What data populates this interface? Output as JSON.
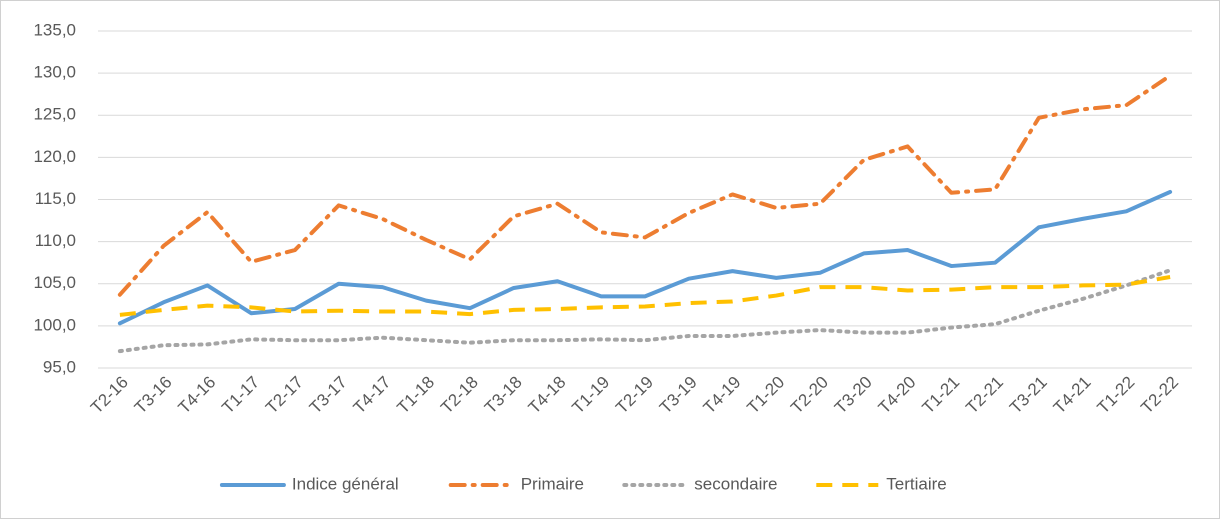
{
  "chart_data": {
    "type": "line",
    "categories": [
      "T2-16",
      "T3-16",
      "T4-16",
      "T1-17",
      "T2-17",
      "T3-17",
      "T4-17",
      "T1-18",
      "T2-18",
      "T3-18",
      "T4-18",
      "T1-19",
      "T2-19",
      "T3-19",
      "T4-19",
      "T1-20",
      "T2-20",
      "T3-20",
      "T4-20",
      "T1-21",
      "T2-21",
      "T3-21",
      "T4-21",
      "T1-22",
      "T2-22"
    ],
    "series": [
      {
        "name": "Indice général",
        "color": "#5b9bd5",
        "dash": "solid",
        "values": [
          100.3,
          102.8,
          104.8,
          101.5,
          102.0,
          105.0,
          104.6,
          103.0,
          102.1,
          104.5,
          105.3,
          103.5,
          103.5,
          105.6,
          106.5,
          105.7,
          106.3,
          108.6,
          109.0,
          107.1,
          107.5,
          111.7,
          112.7,
          113.6,
          115.9
        ]
      },
      {
        "name": "Primaire",
        "color": "#ed7d31",
        "dash": "dashdot",
        "values": [
          103.7,
          109.5,
          113.5,
          107.6,
          109.0,
          114.3,
          112.7,
          110.2,
          107.9,
          113.0,
          114.5,
          111.1,
          110.5,
          113.4,
          115.6,
          114.0,
          114.5,
          119.7,
          121.3,
          115.8,
          116.2,
          124.7,
          125.7,
          126.2,
          129.7
        ]
      },
      {
        "name": "secondaire",
        "color": "#a5a5a5",
        "dash": "dot",
        "values": [
          97.0,
          97.7,
          97.8,
          98.4,
          98.3,
          98.3,
          98.6,
          98.3,
          98.0,
          98.3,
          98.3,
          98.4,
          98.3,
          98.8,
          98.8,
          99.2,
          99.5,
          99.2,
          99.2,
          99.8,
          100.2,
          101.8,
          103.2,
          104.8,
          106.6
        ]
      },
      {
        "name": "Tertiaire",
        "color": "#ffc000",
        "dash": "dash",
        "values": [
          101.3,
          101.9,
          102.4,
          102.2,
          101.7,
          101.8,
          101.7,
          101.7,
          101.4,
          101.9,
          102.0,
          102.2,
          102.3,
          102.7,
          102.9,
          103.6,
          104.6,
          104.6,
          104.2,
          104.3,
          104.6,
          104.6,
          104.8,
          104.9,
          105.8
        ]
      }
    ],
    "ylim": [
      95,
      135
    ],
    "yticks": [
      {
        "value": 95,
        "label": "95,0"
      },
      {
        "value": 100,
        "label": "100,0"
      },
      {
        "value": 105,
        "label": "105,0"
      },
      {
        "value": 110,
        "label": "110,0"
      },
      {
        "value": 115,
        "label": "115,0"
      },
      {
        "value": 120,
        "label": "120,0"
      },
      {
        "value": 125,
        "label": "125,0"
      },
      {
        "value": 130,
        "label": "130,0"
      },
      {
        "value": 135,
        "label": "135,0"
      }
    ],
    "grid": true,
    "legend": "bottom"
  }
}
